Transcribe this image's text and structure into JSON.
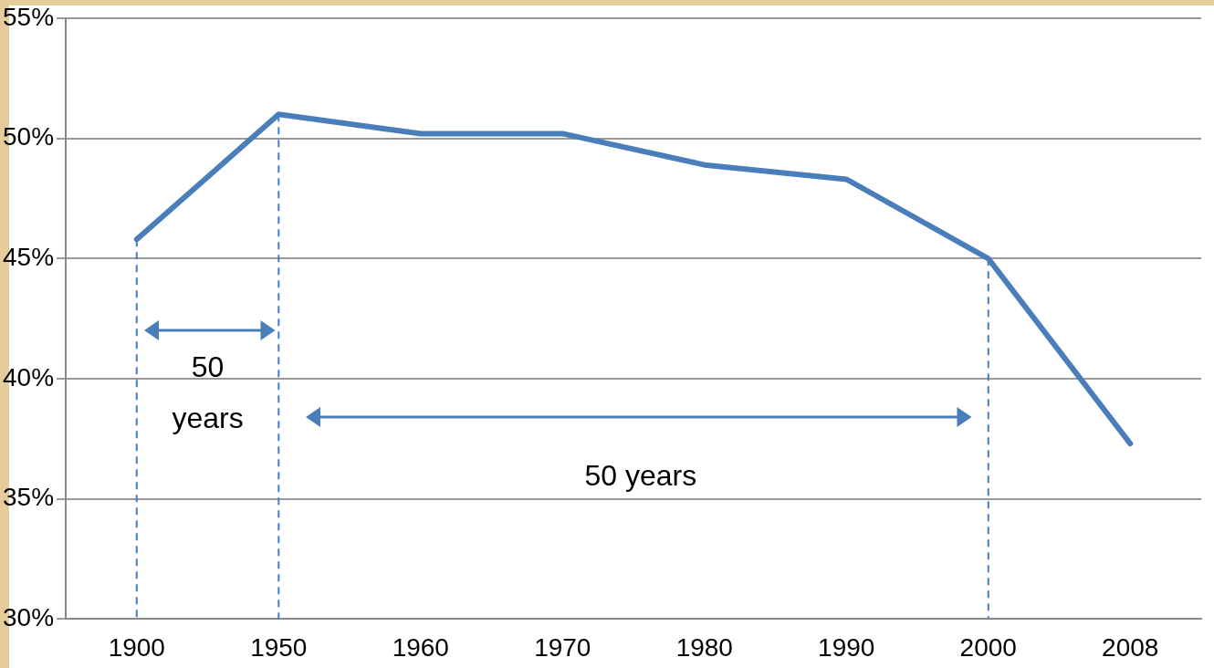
{
  "chart_data": {
    "type": "line",
    "categories": [
      "1900",
      "1950",
      "1960",
      "1970",
      "1980",
      "1990",
      "2000",
      "2008"
    ],
    "series": [
      {
        "color": "#4a7ebb",
        "values": [
          45.8,
          51.0,
          50.2,
          50.2,
          48.9,
          48.3,
          45.0,
          37.3
        ]
      }
    ],
    "ylim": [
      30,
      55
    ],
    "yticks": [
      {
        "value": 30,
        "label": "30%"
      },
      {
        "value": 35,
        "label": "35%"
      },
      {
        "value": 40,
        "label": "40%"
      },
      {
        "value": 45,
        "label": "45%"
      },
      {
        "value": 50,
        "label": "50%"
      },
      {
        "value": 55,
        "label": "55%"
      }
    ],
    "grid": "y",
    "legend": false,
    "marker": "none",
    "line_style": "solid",
    "ref_lines": [
      {
        "axis": "x",
        "value": "1900",
        "color": "#4a7ebb",
        "line_style": "dashed"
      },
      {
        "axis": "x",
        "value": "1950",
        "color": "#4a7ebb",
        "line_style": "dashed"
      },
      {
        "axis": "x",
        "value": "2000",
        "color": "#4a7ebb",
        "line_style": "dashed"
      }
    ],
    "annotations": [
      "50 years",
      "50 years"
    ]
  }
}
